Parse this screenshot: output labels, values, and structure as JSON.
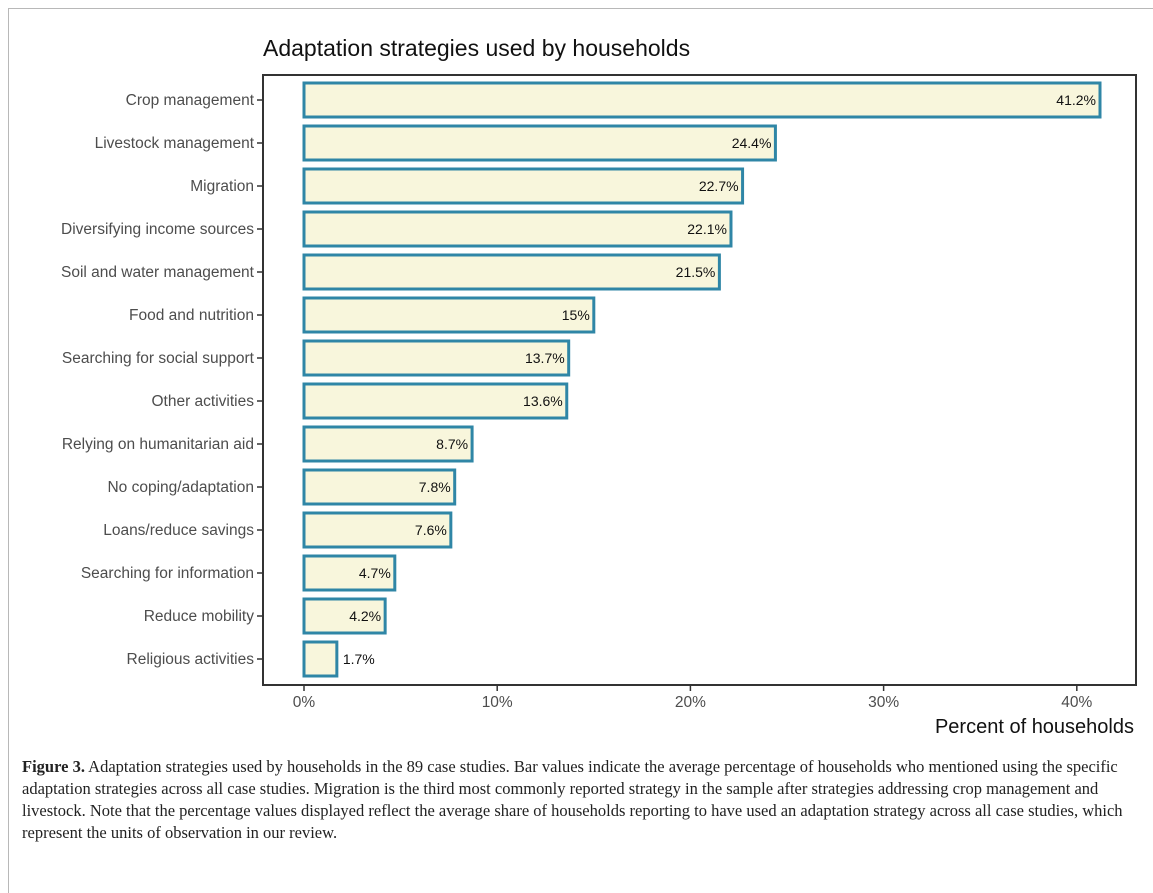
{
  "chart_data": {
    "type": "bar",
    "orientation": "horizontal",
    "title": "Adaptation strategies used by households",
    "xlabel": "Percent of households",
    "ylabel": "",
    "xlim": [
      0,
      43
    ],
    "xticks": [
      0,
      10,
      20,
      30,
      40
    ],
    "xtick_labels": [
      "0%",
      "10%",
      "20%",
      "30%",
      "40%"
    ],
    "grid": false,
    "categories": [
      "Crop management",
      "Livestock management",
      "Migration",
      "Diversifying income sources",
      "Soil and water management",
      "Food and nutrition",
      "Searching for social support",
      "Other activities",
      "Relying on humanitarian aid",
      "No coping/adaptation",
      "Loans/reduce savings",
      "Searching for information",
      "Reduce mobility",
      "Religious activities"
    ],
    "values": [
      41.2,
      24.4,
      22.7,
      22.1,
      21.5,
      15,
      13.7,
      13.6,
      8.7,
      7.8,
      7.6,
      4.7,
      4.2,
      1.7
    ],
    "data_labels": [
      "41.2%",
      "24.4%",
      "22.7%",
      "22.1%",
      "21.5%",
      "15%",
      "13.7%",
      "13.6%",
      "8.7%",
      "7.8%",
      "7.6%",
      "4.7%",
      "4.2%",
      "1.7%"
    ],
    "colors": {
      "bar_fill": "#f8f6dc",
      "bar_stroke": "#2f86a6",
      "axis": "#333333"
    }
  },
  "caption": {
    "label": "Figure 3.",
    "text": " Adaptation strategies used by households in the 89 case studies. Bar values indicate the average percentage of households who mentioned using the specific adaptation strategies across all case studies. Migration is the third most commonly reported strategy in the sample after strategies addressing crop management and livestock. Note that the percentage values displayed reflect the average share of households reporting to have used an adaptation strategy across all case studies, which represent the units of observation in our review."
  }
}
